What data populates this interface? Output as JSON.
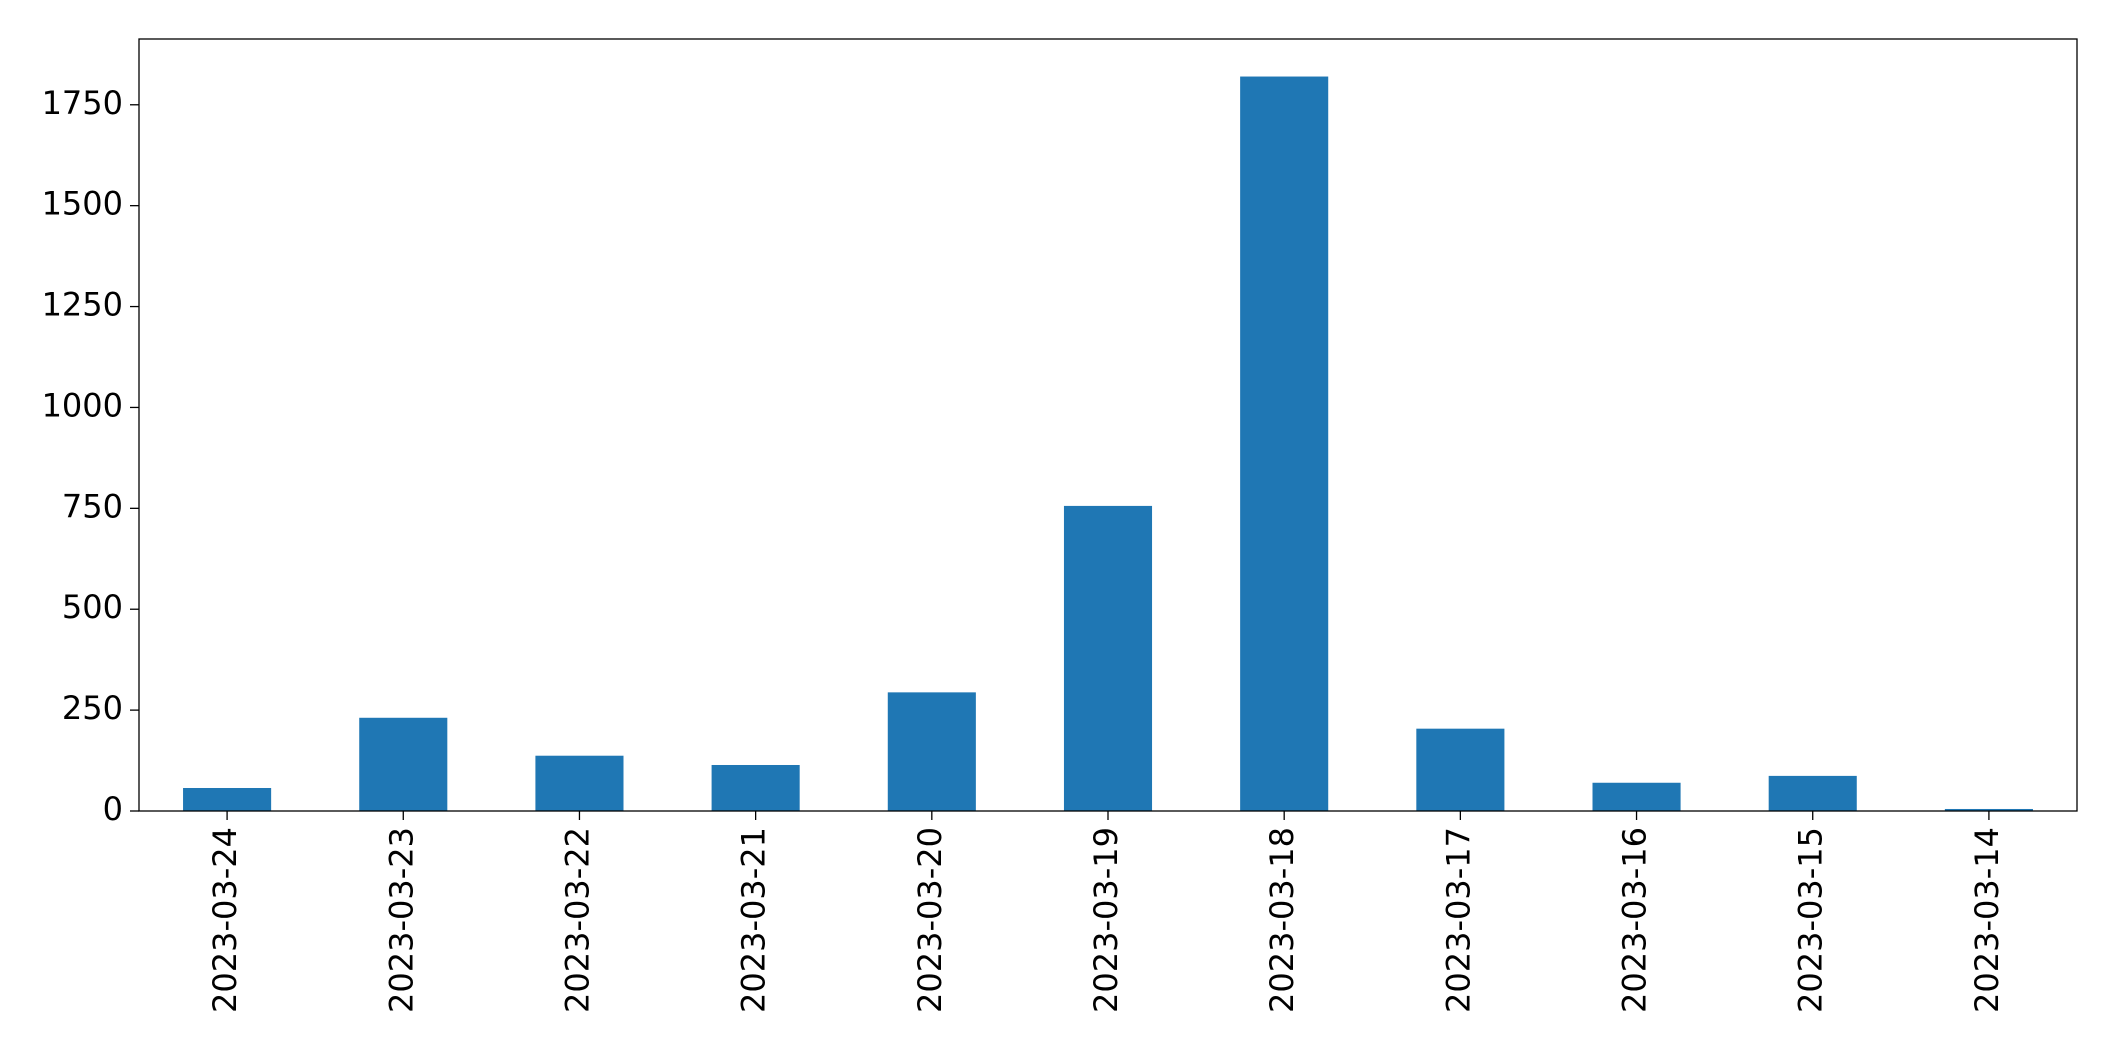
{
  "chart_data": {
    "type": "bar",
    "categories": [
      "2023-03-24",
      "2023-03-23",
      "2023-03-22",
      "2023-03-21",
      "2023-03-20",
      "2023-03-19",
      "2023-03-18",
      "2023-03-17",
      "2023-03-16",
      "2023-03-15",
      "2023-03-14"
    ],
    "values": [
      57,
      231,
      137,
      114,
      294,
      756,
      1820,
      204,
      70,
      87,
      5
    ],
    "color": "#1f77b4",
    "ylim": [
      0,
      1913
    ],
    "yticks": [
      0,
      250,
      500,
      750,
      1000,
      1250,
      1500,
      1750
    ],
    "grid": false
  }
}
